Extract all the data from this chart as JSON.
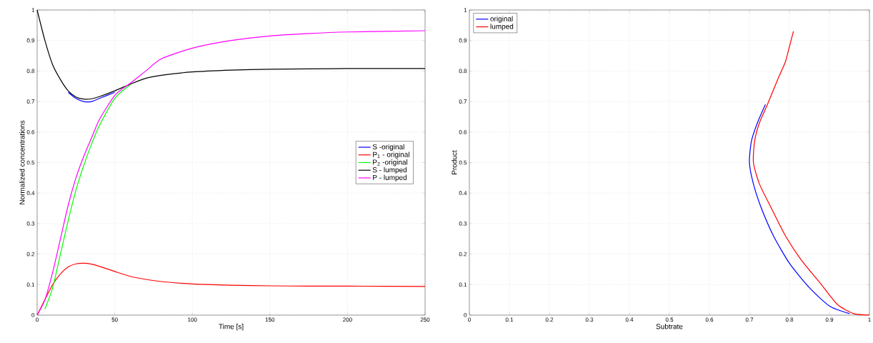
{
  "chart_data": [
    {
      "type": "line",
      "xlabel": "Time [s]",
      "ylabel": "Normalized concentrations",
      "xlim": [
        0,
        250
      ],
      "ylim": [
        0,
        1
      ],
      "xticks": [
        0,
        50,
        100,
        150,
        200,
        250
      ],
      "yticks": [
        0,
        0.1,
        0.2,
        0.3,
        0.4,
        0.5,
        0.6,
        0.7,
        0.8,
        0.9,
        1
      ],
      "grid": true,
      "legend": "right",
      "x": [
        0,
        5,
        10,
        15,
        20,
        25,
        30,
        35,
        40,
        50,
        60,
        70,
        80,
        100,
        125,
        150,
        175,
        200,
        250
      ],
      "series": [
        {
          "name": "S -original",
          "color": "#0000ff",
          "values": [
            null,
            null,
            null,
            null,
            0.73,
            0.71,
            0.7,
            0.7,
            0.71,
            0.73,
            null,
            null,
            null,
            null,
            null,
            null,
            null,
            null,
            null
          ]
        },
        {
          "name": "P$_{1}$ - original",
          "color": "#ff0000",
          "values": [
            0,
            null,
            0.1,
            0.135,
            0.158,
            0.168,
            0.17,
            0.167,
            0.16,
            0.143,
            0.127,
            0.117,
            0.11,
            0.102,
            0.098,
            0.096,
            0.095,
            0.095,
            0.094
          ]
        },
        {
          "name": "P$_{2}$ -original",
          "color": "#00ff00",
          "values": [
            null,
            0.02,
            0.09,
            0.2,
            0.31,
            0.41,
            0.49,
            0.56,
            0.62,
            0.71,
            0.755,
            null,
            null,
            null,
            null,
            null,
            null,
            null,
            null
          ]
        },
        {
          "name": "S - lumped",
          "color": "#000000",
          "values": [
            1.0,
            0.9,
            0.82,
            0.772,
            0.735,
            0.715,
            0.708,
            0.709,
            0.716,
            0.735,
            0.757,
            0.776,
            0.786,
            0.797,
            0.803,
            0.806,
            0.807,
            0.808,
            0.808
          ]
        },
        {
          "name": "P - lumped",
          "color": "#ff00ff",
          "values": [
            0,
            0.05,
            0.14,
            0.25,
            0.36,
            0.45,
            0.52,
            0.58,
            0.64,
            0.72,
            0.76,
            0.8,
            0.84,
            0.875,
            0.9,
            0.915,
            0.923,
            0.928,
            0.932
          ]
        }
      ]
    },
    {
      "type": "line",
      "xlabel": "Subtrate",
      "ylabel": "Product",
      "xlim": [
        0,
        1
      ],
      "ylim": [
        0,
        1
      ],
      "xticks": [
        0,
        0.1,
        0.2,
        0.3,
        0.4,
        0.5,
        0.6,
        0.7,
        0.8,
        0.9,
        1
      ],
      "yticks": [
        0,
        0.1,
        0.2,
        0.3,
        0.4,
        0.5,
        0.6,
        0.7,
        0.8,
        0.9,
        1
      ],
      "grid": true,
      "legend": "top left",
      "series": [
        {
          "name": "original",
          "color": "#0000ff",
          "x": [
            0.95,
            0.9,
            0.85,
            0.8,
            0.76,
            0.73,
            0.71,
            0.7,
            0.705,
            0.72,
            0.74
          ],
          "values": [
            0.005,
            0.03,
            0.09,
            0.17,
            0.26,
            0.35,
            0.43,
            0.5,
            0.57,
            0.63,
            0.69
          ]
        },
        {
          "name": "lumped",
          "color": "#ff0000",
          "x": [
            1.0,
            0.96,
            0.92,
            0.88,
            0.83,
            0.79,
            0.755,
            0.725,
            0.71,
            0.713,
            0.725,
            0.745,
            0.77,
            0.79,
            0.8,
            0.81
          ],
          "values": [
            0,
            0.005,
            0.035,
            0.1,
            0.18,
            0.26,
            0.35,
            0.43,
            0.5,
            0.57,
            0.63,
            0.69,
            0.77,
            0.83,
            0.88,
            0.93
          ]
        }
      ]
    }
  ]
}
